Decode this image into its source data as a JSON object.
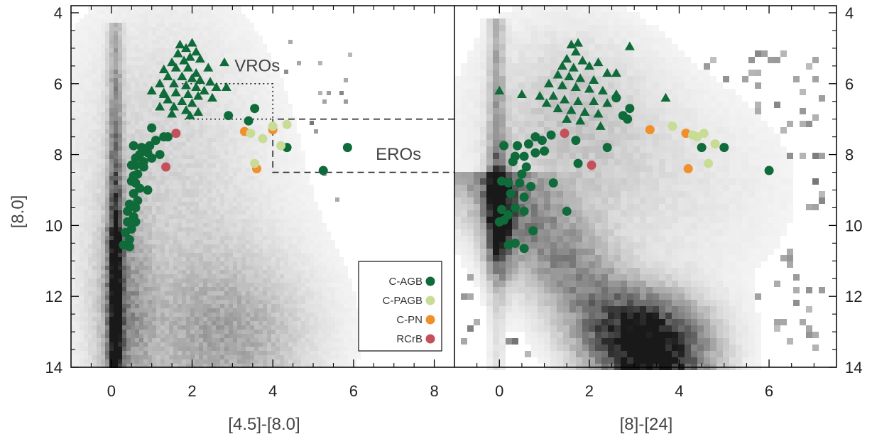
{
  "chart_data": [
    {
      "type": "scatter",
      "panel": "left",
      "xlabel": "[4.5]-[8.0]",
      "ylabel": "[8.0]",
      "xlim": [
        -1.0,
        8.5
      ],
      "ylim": [
        14.0,
        3.8
      ],
      "y_inverted": true,
      "xticks": [
        0,
        2,
        4,
        6,
        8
      ],
      "yticks": [
        4,
        6,
        8,
        10,
        12,
        14
      ],
      "background": "grayscale 2D density (Hess diagram) of all sources",
      "annotations": [
        {
          "text": "VROs",
          "box": {
            "x": [
              1.75,
              4.0
            ],
            "y": [
              6.0,
              7.0
            ]
          },
          "style": "dotted"
        },
        {
          "text": "EROs",
          "box": {
            "x": [
              4.0,
              8.5
            ],
            "y": [
              7.0,
              8.5
            ]
          },
          "style": "dashed"
        }
      ],
      "legend": {
        "placement": "bottom-right",
        "entries": [
          {
            "label": "C-AGB",
            "color": "#0f6b3a"
          },
          {
            "label": "C-PAGB",
            "color": "#c8dc96"
          },
          {
            "label": "C-PN",
            "color": "#f0902c"
          },
          {
            "label": "RCrB",
            "color": "#c4505a"
          }
        ]
      },
      "series": [
        {
          "name": "C-AGB",
          "marker": "circle",
          "color": "#0f6b3a",
          "points": [
            [
              0.55,
              7.75
            ],
            [
              0.75,
              7.8
            ],
            [
              0.95,
              7.75
            ],
            [
              1.1,
              7.6
            ],
            [
              1.3,
              7.5
            ],
            [
              1.0,
              7.25
            ],
            [
              0.9,
              7.95
            ],
            [
              0.7,
              8.0
            ],
            [
              0.6,
              8.1
            ],
            [
              0.8,
              8.2
            ],
            [
              1.0,
              8.1
            ],
            [
              0.6,
              8.3
            ],
            [
              0.8,
              8.35
            ],
            [
              0.55,
              8.6
            ],
            [
              0.6,
              8.8
            ],
            [
              0.7,
              8.95
            ],
            [
              0.5,
              8.75
            ],
            [
              0.9,
              9.0
            ],
            [
              0.55,
              9.1
            ],
            [
              0.65,
              9.3
            ],
            [
              0.45,
              9.4
            ],
            [
              0.6,
              9.5
            ],
            [
              0.4,
              9.6
            ],
            [
              0.55,
              9.75
            ],
            [
              0.4,
              9.9
            ],
            [
              0.6,
              9.9
            ],
            [
              0.5,
              10.1
            ],
            [
              0.35,
              10.2
            ],
            [
              0.45,
              10.4
            ],
            [
              0.45,
              10.6
            ],
            [
              0.3,
              10.55
            ],
            [
              1.4,
              7.5
            ],
            [
              2.9,
              6.9
            ],
            [
              3.4,
              7.05
            ],
            [
              3.55,
              6.7
            ],
            [
              4.35,
              7.8
            ],
            [
              5.25,
              8.45
            ],
            [
              5.85,
              7.8
            ],
            [
              1.2,
              8.0
            ],
            [
              0.65,
              8.55
            ],
            [
              0.5,
              8.3
            ]
          ]
        },
        {
          "name": "C-AGB triangles",
          "marker": "triangle",
          "color": "#0f6b3a",
          "points": [
            [
              1.7,
              4.9
            ],
            [
              2.0,
              4.85
            ],
            [
              1.85,
              5.0
            ],
            [
              2.1,
              5.1
            ],
            [
              1.65,
              5.15
            ],
            [
              1.95,
              5.25
            ],
            [
              1.8,
              5.35
            ],
            [
              2.2,
              5.3
            ],
            [
              1.5,
              5.4
            ],
            [
              2.4,
              5.55
            ],
            [
              2.8,
              5.4
            ],
            [
              1.3,
              5.6
            ],
            [
              1.6,
              5.55
            ],
            [
              1.9,
              5.55
            ],
            [
              2.1,
              5.7
            ],
            [
              1.4,
              5.8
            ],
            [
              1.75,
              5.8
            ],
            [
              2.0,
              5.85
            ],
            [
              2.2,
              5.9
            ],
            [
              2.45,
              5.95
            ],
            [
              1.2,
              6.0
            ],
            [
              1.55,
              6.0
            ],
            [
              1.85,
              6.05
            ],
            [
              2.1,
              6.1
            ],
            [
              2.6,
              6.1
            ],
            [
              2.85,
              6.1
            ],
            [
              1.0,
              6.2
            ],
            [
              1.3,
              6.25
            ],
            [
              1.6,
              6.25
            ],
            [
              1.9,
              6.3
            ],
            [
              2.15,
              6.35
            ],
            [
              2.5,
              6.4
            ],
            [
              1.4,
              6.45
            ],
            [
              1.75,
              6.5
            ],
            [
              2.0,
              6.55
            ],
            [
              1.2,
              6.65
            ],
            [
              1.55,
              6.65
            ],
            [
              1.85,
              6.75
            ],
            [
              2.15,
              6.8
            ],
            [
              1.5,
              6.85
            ],
            [
              1.95,
              6.9
            ],
            [
              1.3,
              6.3
            ],
            [
              2.3,
              6.2
            ]
          ]
        },
        {
          "name": "C-PAGB",
          "marker": "circle",
          "color": "#c8dc96",
          "points": [
            [
              3.45,
              7.4
            ],
            [
              3.75,
              7.55
            ],
            [
              4.0,
              7.2
            ],
            [
              4.35,
              7.15
            ],
            [
              4.2,
              7.75
            ],
            [
              3.55,
              8.25
            ]
          ]
        },
        {
          "name": "C-PN",
          "marker": "circle",
          "color": "#f0902c",
          "points": [
            [
              3.3,
              7.35
            ],
            [
              4.0,
              7.3
            ],
            [
              3.6,
              8.4
            ]
          ]
        },
        {
          "name": "RCrB",
          "marker": "circle",
          "color": "#c4505a",
          "points": [
            [
              1.6,
              7.4
            ],
            [
              1.35,
              8.35
            ]
          ]
        }
      ]
    },
    {
      "type": "scatter",
      "panel": "right",
      "xlabel": "[8]-[24]",
      "ylabel": "",
      "xlim": [
        -1.0,
        7.5
      ],
      "ylim": [
        14.0,
        3.8
      ],
      "y_inverted": true,
      "xticks": [
        0,
        2,
        4,
        6
      ],
      "yticks": [
        4,
        6,
        8,
        10,
        12,
        14
      ],
      "background": "grayscale 2D density (Hess diagram) of all sources",
      "series": [
        {
          "name": "C-AGB",
          "marker": "circle",
          "color": "#0f6b3a",
          "points": [
            [
              0.1,
              7.75
            ],
            [
              0.4,
              7.75
            ],
            [
              0.65,
              7.7
            ],
            [
              0.95,
              7.6
            ],
            [
              0.8,
              7.5
            ],
            [
              1.15,
              7.45
            ],
            [
              0.35,
              8.05
            ],
            [
              0.55,
              8.05
            ],
            [
              0.8,
              7.95
            ],
            [
              0.3,
              8.2
            ],
            [
              0.6,
              8.35
            ],
            [
              0.5,
              8.55
            ],
            [
              0.2,
              8.8
            ],
            [
              0.05,
              8.75
            ],
            [
              0.45,
              8.8
            ],
            [
              0.7,
              8.9
            ],
            [
              0.25,
              9.1
            ],
            [
              0.55,
              9.2
            ],
            [
              0.05,
              9.55
            ],
            [
              0.2,
              9.7
            ],
            [
              0.35,
              9.5
            ],
            [
              0.55,
              9.6
            ],
            [
              0.1,
              9.85
            ],
            [
              0.0,
              9.9
            ],
            [
              0.75,
              10.15
            ],
            [
              0.35,
              10.5
            ],
            [
              0.55,
              10.65
            ],
            [
              0.2,
              10.55
            ],
            [
              1.5,
              9.6
            ],
            [
              1.2,
              8.8
            ],
            [
              1.7,
              7.6
            ],
            [
              2.4,
              7.8
            ],
            [
              2.6,
              6.4
            ],
            [
              2.75,
              6.9
            ],
            [
              2.85,
              7.0
            ],
            [
              2.9,
              6.7
            ],
            [
              4.5,
              7.8
            ],
            [
              5.0,
              7.8
            ],
            [
              6.0,
              8.45
            ],
            [
              1.75,
              8.25
            ],
            [
              1.0,
              7.9
            ]
          ]
        },
        {
          "name": "C-AGB triangles",
          "marker": "triangle",
          "color": "#0f6b3a",
          "points": [
            [
              1.6,
              4.9
            ],
            [
              1.75,
              4.85
            ],
            [
              1.7,
              5.1
            ],
            [
              1.5,
              5.3
            ],
            [
              1.85,
              5.35
            ],
            [
              2.2,
              5.4
            ],
            [
              1.4,
              5.5
            ],
            [
              1.65,
              5.55
            ],
            [
              2.0,
              5.5
            ],
            [
              2.4,
              5.7
            ],
            [
              1.3,
              5.75
            ],
            [
              1.55,
              5.8
            ],
            [
              1.8,
              5.85
            ],
            [
              2.1,
              5.9
            ],
            [
              2.6,
              5.7
            ],
            [
              2.9,
              4.95
            ],
            [
              1.1,
              6.0
            ],
            [
              1.4,
              6.05
            ],
            [
              1.7,
              6.1
            ],
            [
              2.0,
              6.15
            ],
            [
              2.3,
              6.2
            ],
            [
              0.0,
              6.2
            ],
            [
              0.5,
              6.3
            ],
            [
              0.9,
              6.35
            ],
            [
              1.2,
              6.35
            ],
            [
              1.45,
              6.45
            ],
            [
              1.75,
              6.5
            ],
            [
              2.1,
              6.5
            ],
            [
              2.4,
              6.55
            ],
            [
              3.7,
              6.4
            ],
            [
              1.3,
              6.7
            ],
            [
              1.6,
              6.75
            ],
            [
              1.9,
              6.8
            ],
            [
              2.2,
              6.85
            ],
            [
              1.5,
              7.0
            ],
            [
              1.8,
              7.05
            ],
            [
              2.25,
              7.2
            ],
            [
              1.05,
              6.55
            ],
            [
              2.6,
              6.3
            ]
          ]
        },
        {
          "name": "C-PAGB",
          "marker": "circle",
          "color": "#c8dc96",
          "points": [
            [
              3.85,
              7.2
            ],
            [
              4.4,
              7.5
            ],
            [
              4.55,
              7.4
            ],
            [
              4.8,
              7.7
            ],
            [
              4.65,
              8.25
            ],
            [
              4.3,
              7.45
            ]
          ]
        },
        {
          "name": "C-PN",
          "marker": "circle",
          "color": "#f0902c",
          "points": [
            [
              3.35,
              7.3
            ],
            [
              4.15,
              7.4
            ],
            [
              4.2,
              8.4
            ]
          ]
        },
        {
          "name": "RCrB",
          "marker": "circle",
          "color": "#c4505a",
          "points": [
            [
              1.45,
              7.4
            ],
            [
              2.05,
              8.3
            ]
          ]
        }
      ]
    }
  ]
}
